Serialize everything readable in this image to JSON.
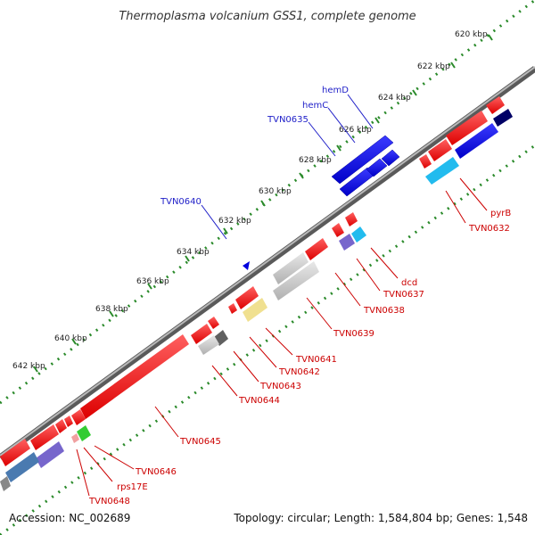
{
  "title": "Thermoplasma volcanium GSS1, complete genome",
  "footer": {
    "accession": "Accession: NC_002689",
    "summary": "Topology: circular; Length: 1,584,804 bp; Genes: 1,548"
  },
  "ticks": [
    "620 kbp",
    "622 kbp",
    "624 kbp",
    "626 kbp",
    "628 kbp",
    "630 kbp",
    "632 kbp",
    "634 kbp",
    "636 kbp",
    "638 kbp",
    "640 kbp",
    "642 kbp"
  ],
  "labels_forward": [
    "hemD",
    "hemC",
    "TVN0635",
    "TVN0640"
  ],
  "labels_reverse": [
    "pyrB",
    "TVN0632",
    "dcd",
    "TVN0637",
    "TVN0638",
    "TVN0639",
    "TVN0641",
    "TVN0642",
    "TVN0643",
    "TVN0644",
    "TVN0645",
    "TVN0646",
    "rps17E",
    "TVN0648"
  ],
  "colors": {
    "backbone": "#808080",
    "forward_ring": "#2a8a2a",
    "reverse_ring": "#2a8a2a",
    "gene_red": "#ee0000",
    "gene_blue": "#0000dd",
    "gene_cyan": "#22bbee",
    "gene_gray": "#c0c0c0",
    "gene_yellow": "#f0e090",
    "gene_purple": "#7766cc",
    "gene_navy": "#000066",
    "gene_green": "#33cc33",
    "gene_steel": "#4a7ab0",
    "label_forward": "#1e1ec8",
    "label_reverse": "#cc0000"
  }
}
